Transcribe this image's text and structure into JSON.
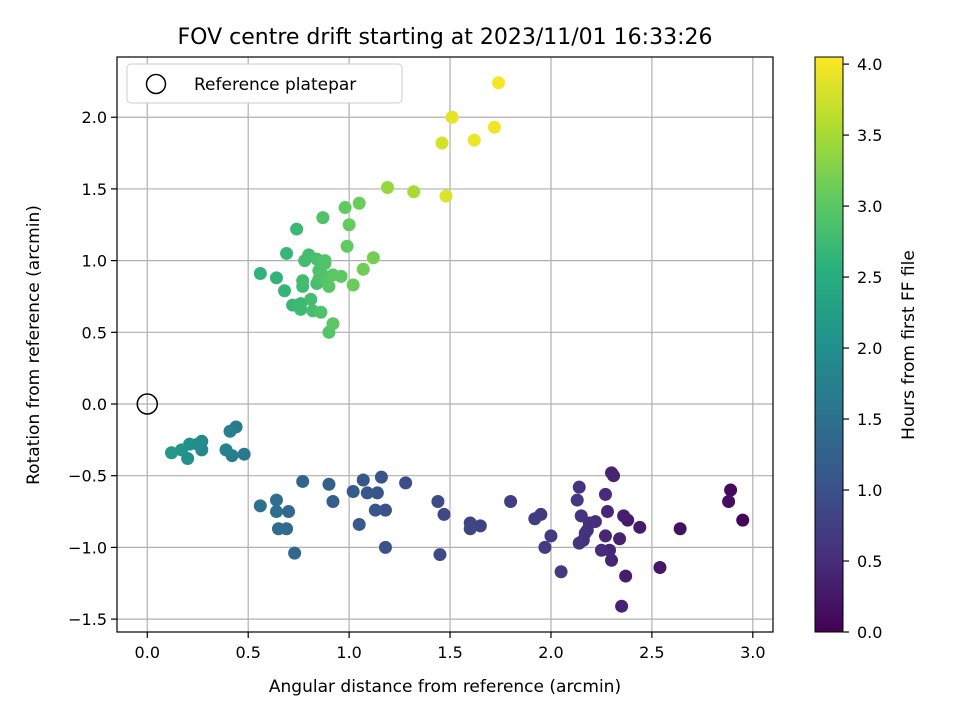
{
  "chart_data": {
    "type": "scatter",
    "title": "FOV centre drift starting at 2023/11/01 16:33:26",
    "xlabel": "Angular distance from reference (arcmin)",
    "ylabel": "Rotation from reference (arcmin)",
    "xlim": [
      -0.15,
      3.1
    ],
    "ylim": [
      -1.59,
      2.42
    ],
    "xticks": [
      "0.0",
      "0.5",
      "1.0",
      "1.5",
      "2.0",
      "2.5",
      "3.0"
    ],
    "yticks": [
      "−1.5",
      "−1.0",
      "−0.5",
      "0.0",
      "0.5",
      "1.0",
      "1.5",
      "2.0"
    ],
    "xtick_values": [
      0,
      0.5,
      1,
      1.5,
      2,
      2.5,
      3
    ],
    "ytick_values": [
      -1.5,
      -1,
      -0.5,
      0,
      0.5,
      1,
      1.5,
      2
    ],
    "grid": true,
    "legend": {
      "placement": "top-left",
      "entries": [
        "Reference platepar"
      ]
    },
    "reference_point": {
      "x": 0.0,
      "y": 0.0,
      "label": "Reference platepar"
    },
    "colorbar": {
      "label": "Hours from first FF file",
      "colormap": "viridis",
      "range": [
        0.0,
        4.05
      ],
      "ticks": [
        "0.0",
        "0.5",
        "1.0",
        "1.5",
        "2.0",
        "2.5",
        "3.0",
        "3.5",
        "4.0"
      ],
      "tick_values": [
        0,
        0.5,
        1,
        1.5,
        2,
        2.5,
        3,
        3.5,
        4
      ]
    },
    "series": [
      {
        "x": [
          2.95,
          2.89,
          2.88,
          2.64,
          2.54,
          2.44,
          2.38,
          2.37,
          2.36,
          2.35,
          2.34,
          2.3,
          2.31,
          2.3,
          2.29,
          2.28,
          2.27,
          2.27,
          2.25,
          2.22,
          2.19,
          2.18,
          2.17,
          2.16,
          2.15,
          2.14,
          2.14,
          2.13,
          2.05,
          2.0,
          1.97,
          1.95,
          1.92,
          1.8
        ],
        "y": [
          -0.81,
          -0.6,
          -0.68,
          -0.87,
          -1.14,
          -0.86,
          -0.81,
          -1.2,
          -0.78,
          -1.41,
          -0.94,
          -0.48,
          -0.5,
          -1.09,
          -1.02,
          -0.75,
          -0.92,
          -0.63,
          -1.02,
          -0.82,
          -0.83,
          -0.88,
          -0.9,
          -0.95,
          -0.78,
          -0.58,
          -0.97,
          -0.67,
          -1.17,
          -0.92,
          -1.0,
          -0.77,
          -0.8,
          -0.68
        ],
        "color_values": [
          0.05,
          0.1,
          0.15,
          0.2,
          0.25,
          0.3,
          0.3,
          0.33,
          0.35,
          0.38,
          0.38,
          0.4,
          0.42,
          0.42,
          0.45,
          0.45,
          0.45,
          0.5,
          0.5,
          0.52,
          0.55,
          0.55,
          0.57,
          0.58,
          0.6,
          0.6,
          0.62,
          0.65,
          0.68,
          0.68,
          0.7,
          0.7,
          0.72,
          0.75
        ]
      },
      {
        "x": [
          1.65,
          1.6,
          1.6,
          1.47,
          1.45,
          1.44,
          1.28,
          1.18,
          1.18,
          1.16,
          1.14,
          1.13,
          1.09,
          1.07,
          1.05,
          1.02,
          0.92,
          0.9,
          0.77,
          0.73,
          0.7,
          0.69,
          0.65,
          0.64,
          0.64,
          0.56
        ],
        "y": [
          -0.85,
          -0.83,
          -0.87,
          -0.77,
          -1.05,
          -0.68,
          -0.55,
          -1.0,
          -0.74,
          -0.51,
          -0.62,
          -0.74,
          -0.62,
          -0.53,
          -0.84,
          -0.61,
          -0.68,
          -0.56,
          -0.54,
          -1.04,
          -0.75,
          -0.87,
          -0.87,
          -0.67,
          -0.75,
          -0.71
        ],
        "color_values": [
          0.8,
          0.82,
          0.85,
          0.88,
          0.9,
          0.92,
          0.95,
          1.0,
          1.0,
          1.05,
          1.05,
          1.08,
          1.1,
          1.1,
          1.12,
          1.15,
          1.2,
          1.25,
          1.3,
          1.35,
          1.38,
          1.4,
          1.42,
          1.45,
          1.48,
          1.5
        ]
      },
      {
        "x": [
          0.48,
          0.44,
          0.42,
          0.41,
          0.39,
          0.27,
          0.27,
          0.25,
          0.21,
          0.2,
          0.17,
          0.12
        ],
        "y": [
          -0.35,
          -0.16,
          -0.36,
          -0.19,
          -0.32,
          -0.32,
          -0.26,
          -0.28,
          -0.28,
          -0.38,
          -0.32,
          -0.34
        ],
        "color_values": [
          1.6,
          1.65,
          1.7,
          1.75,
          1.8,
          1.85,
          1.9,
          1.95,
          2.0,
          2.05,
          2.1,
          2.15
        ]
      },
      {
        "x": [
          0.56,
          0.64,
          0.68,
          0.69,
          0.72,
          0.74,
          0.76,
          0.76,
          0.77,
          0.77,
          0.78,
          0.8,
          0.81,
          0.82,
          0.84,
          0.84,
          0.85,
          0.85,
          0.86,
          0.87,
          0.87,
          0.88,
          0.88,
          0.89,
          0.9,
          0.9,
          0.92,
          0.92,
          0.96,
          0.98,
          0.99,
          1.0,
          1.02,
          1.05,
          1.07,
          1.12
        ],
        "y": [
          0.91,
          0.88,
          0.79,
          1.05,
          0.69,
          1.22,
          0.7,
          0.66,
          0.82,
          0.86,
          1.0,
          1.04,
          0.73,
          0.65,
          0.84,
          1.01,
          0.87,
          0.93,
          0.64,
          1.3,
          0.9,
          0.98,
          1.0,
          0.86,
          0.5,
          0.82,
          0.56,
          0.9,
          0.89,
          1.37,
          1.1,
          1.25,
          0.83,
          1.4,
          0.94,
          1.02
        ],
        "color_values": [
          2.6,
          2.62,
          2.65,
          2.68,
          2.7,
          2.72,
          2.72,
          2.75,
          2.75,
          2.78,
          2.78,
          2.8,
          2.8,
          2.82,
          2.82,
          2.85,
          2.85,
          2.88,
          2.88,
          2.9,
          2.9,
          2.92,
          2.92,
          2.95,
          2.95,
          2.98,
          3.0,
          3.0,
          3.02,
          3.05,
          3.05,
          3.08,
          3.1,
          3.12,
          3.15,
          3.18
        ]
      },
      {
        "x": [
          1.19,
          1.32,
          1.46,
          1.48,
          1.51,
          1.62,
          1.72,
          1.74
        ],
        "y": [
          1.51,
          1.48,
          1.82,
          1.45,
          2.0,
          1.84,
          1.93,
          2.24
        ],
        "color_values": [
          3.4,
          3.5,
          3.8,
          3.85,
          3.9,
          3.95,
          3.98,
          4.0
        ]
      }
    ]
  }
}
